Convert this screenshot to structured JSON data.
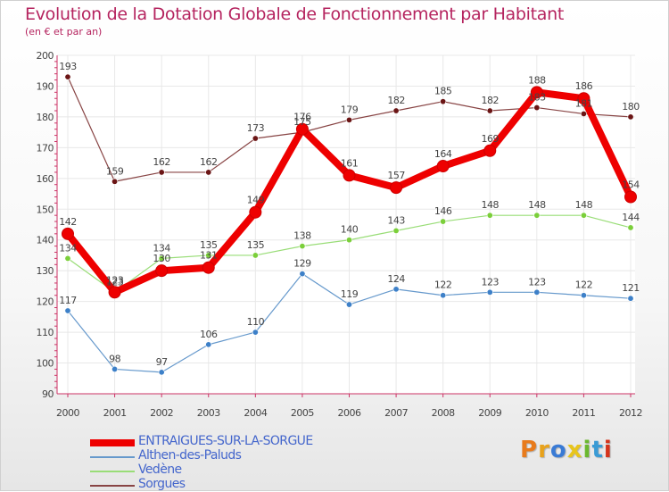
{
  "title": "Evolution de la Dotation Globale de Fonctionnement par Habitant",
  "subtitle": "(en € et par an)",
  "logo": "Proxiti",
  "logo_colors": [
    "#e87b1c",
    "#e8a21c",
    "#3a7bd5",
    "#e8c51c",
    "#6bb82f",
    "#3a9bd5",
    "#d5341c"
  ],
  "chart_data": {
    "type": "line",
    "x": [
      "2000",
      "2001",
      "2002",
      "2003",
      "2004",
      "2005",
      "2006",
      "2007",
      "2008",
      "2009",
      "2010",
      "2011",
      "2012"
    ],
    "ylim": [
      90,
      200
    ],
    "yticks": [
      90,
      100,
      110,
      120,
      130,
      140,
      150,
      160,
      170,
      180,
      190,
      200
    ],
    "grid": true,
    "legend_position": "bottom-left",
    "series": [
      {
        "name": "ENTRAIGUES-SUR-LA-SORGUE",
        "color": "#ee0000",
        "point_color": "#ee0000",
        "emphasis": true,
        "values": [
          142,
          123,
          130,
          131,
          149,
          176,
          161,
          157,
          164,
          169,
          188,
          186,
          154
        ]
      },
      {
        "name": "Althen-des-Paluds",
        "color": "#6699cc",
        "point_color": "#3d80c8",
        "values": [
          117,
          98,
          97,
          106,
          110,
          129,
          119,
          124,
          122,
          123,
          123,
          122,
          121
        ]
      },
      {
        "name": "Vedène",
        "color": "#99dd77",
        "point_color": "#7bcf3a",
        "values": [
          134,
          123,
          134,
          135,
          135,
          138,
          140,
          143,
          146,
          148,
          148,
          148,
          144
        ]
      },
      {
        "name": "Sorgues",
        "color": "#884444",
        "point_color": "#6b1515",
        "values": [
          193,
          159,
          162,
          162,
          173,
          175,
          179,
          182,
          185,
          182,
          183,
          181,
          180
        ]
      }
    ]
  }
}
